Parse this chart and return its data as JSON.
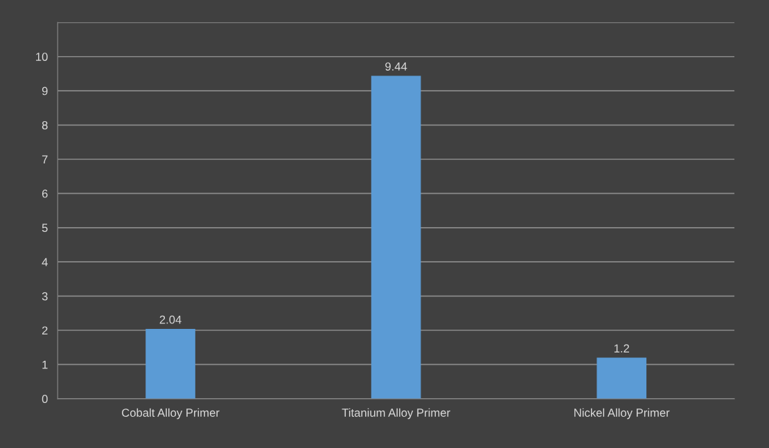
{
  "chart_data": {
    "type": "bar",
    "categories": [
      "Cobalt Alloy Primer",
      "Titanium Alloy Primer",
      "Nickel Alloy Primer"
    ],
    "values": [
      2.04,
      9.44,
      1.2
    ],
    "color": "#5b9bd5",
    "ylim": [
      0,
      11
    ],
    "yticks": [
      0,
      1,
      2,
      3,
      4,
      5,
      6,
      7,
      8,
      9,
      10,
      {
        "value": 11,
        "label": null
      }
    ],
    "grid": "y",
    "data_labels": true
  }
}
